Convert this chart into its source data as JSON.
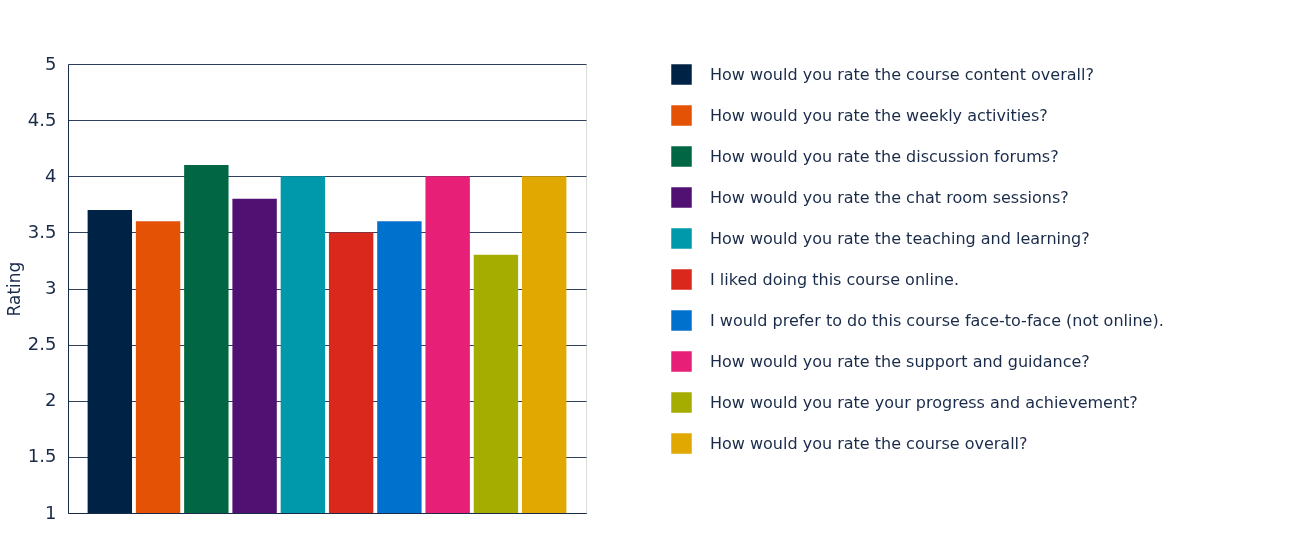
{
  "chart_data": {
    "type": "bar",
    "ylabel": "Rating",
    "categories": [
      null
    ],
    "series": [
      {
        "name": "How would you rate the course content overall?",
        "color": "#002244",
        "values": [
          3.7
        ]
      },
      {
        "name": "How would you rate the weekly activities?",
        "color": "#e35205",
        "values": [
          3.6
        ]
      },
      {
        "name": "How would you rate the discussion forums?",
        "color": "#006644",
        "values": [
          4.1
        ]
      },
      {
        "name": "How would you rate the chat room sessions?",
        "color": "#511173",
        "values": [
          3.8
        ]
      },
      {
        "name": "How would you rate the teaching and learning?",
        "color": "#0098ab",
        "values": [
          4.0
        ]
      },
      {
        "name": "I liked doing this course online.",
        "color": "#da291c",
        "values": [
          3.5
        ]
      },
      {
        "name": "I would prefer to do this course face-to-face (not online).",
        "color": "#0072ce",
        "values": [
          3.6
        ]
      },
      {
        "name": "How would you rate the support and guidance?",
        "color": "#e81f76",
        "values": [
          4.0
        ]
      },
      {
        "name": "How would you rate your progress and achievement?",
        "color": "#a4ad00",
        "values": [
          3.3
        ]
      },
      {
        "name": "How would you rate the course overall?",
        "color": "#e0a800",
        "values": [
          4.0
        ]
      }
    ],
    "ylim": [
      1,
      5
    ],
    "yticks": [
      1,
      1.5,
      2,
      2.5,
      3,
      3.5,
      4,
      4.5,
      5
    ],
    "grid": "y",
    "legend": "right",
    "tick_labels": "y"
  }
}
